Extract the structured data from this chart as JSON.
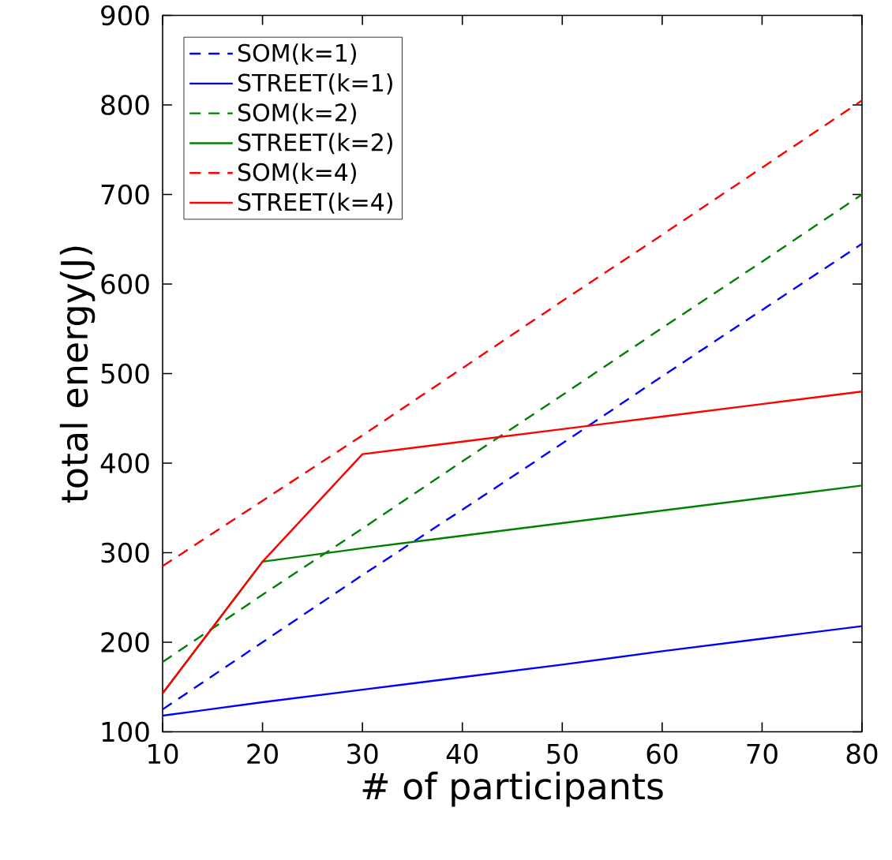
{
  "chart_data": {
    "type": "line",
    "xlabel": "# of participants",
    "ylabel": "total energy(J)",
    "x": [
      10,
      20,
      30,
      40,
      50,
      60,
      70,
      80
    ],
    "series": [
      {
        "name": "SOM(k=1)",
        "color": "#0000ff",
        "line_style": "dashed",
        "values": [
          125,
          200,
          275,
          348,
          422,
          497,
          571,
          645
        ]
      },
      {
        "name": "STREET(k=1)",
        "color": "#0000ff",
        "line_style": "solid",
        "values": [
          118,
          133,
          147,
          161,
          175,
          190,
          204,
          218
        ]
      },
      {
        "name": "SOM(k=2)",
        "color": "#008000",
        "line_style": "dashed",
        "values": [
          178,
          253,
          327,
          402,
          476,
          551,
          625,
          700
        ]
      },
      {
        "name": "STREET(k=2)",
        "color": "#008000",
        "line_style": "solid",
        "values": [
          143,
          290,
          305,
          319,
          333,
          347,
          361,
          375
        ]
      },
      {
        "name": "SOM(k=4)",
        "color": "#ff0000",
        "line_style": "dashed",
        "values": [
          285,
          358,
          431,
          506,
          581,
          655,
          730,
          805
        ]
      },
      {
        "name": "STREET(k=4)",
        "color": "#ff0000",
        "line_style": "solid",
        "values": [
          143,
          290,
          410,
          424,
          438,
          452,
          466,
          480
        ]
      }
    ],
    "xlim": [
      10,
      80
    ],
    "ylim": [
      100,
      900
    ],
    "xticks": [
      10,
      20,
      30,
      40,
      50,
      60,
      70,
      80
    ],
    "yticks": [
      100,
      200,
      300,
      400,
      500,
      600,
      700,
      800,
      900
    ],
    "grid": false,
    "legend": "top left"
  }
}
